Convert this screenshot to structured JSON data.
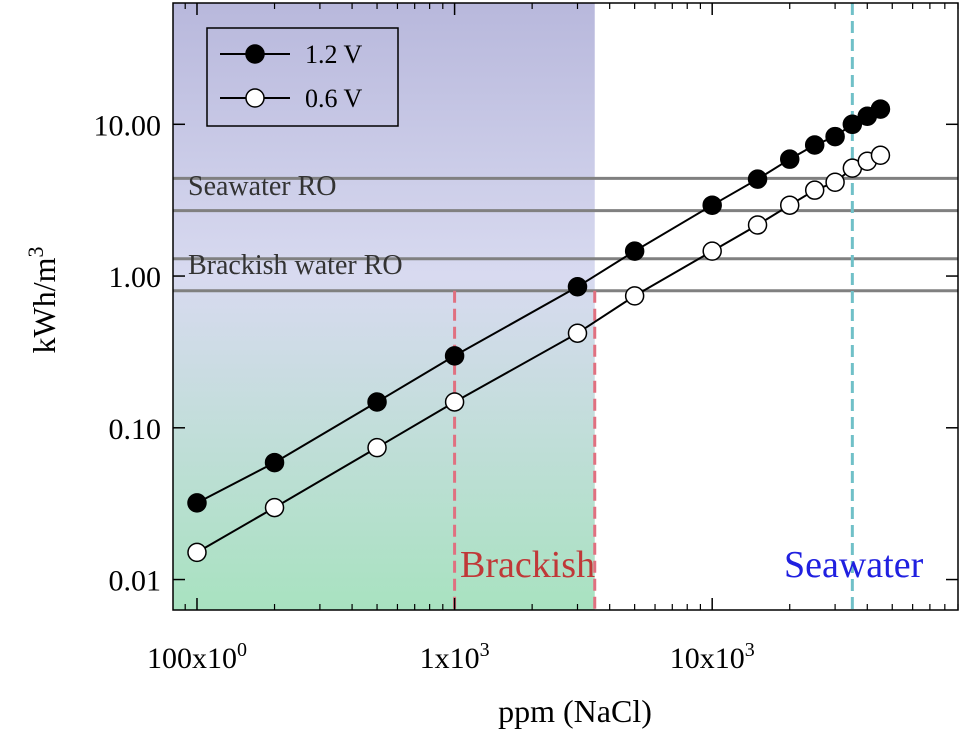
{
  "chart_data": {
    "type": "scatter",
    "x_label": "ppm (NaCl)",
    "y_label": {
      "text": "kWh/m",
      "sup": "3"
    },
    "log_x": true,
    "log_y": true,
    "xlim": [
      80.7,
      90000
    ],
    "ylim": [
      0.0063,
      63
    ],
    "xticks": [
      {
        "value": 100,
        "label": "100x10",
        "exp": "0"
      },
      {
        "value": 1000,
        "label": "1x10",
        "exp": "3"
      },
      {
        "value": 10000,
        "label": "10x10",
        "exp": "3"
      }
    ],
    "xminor_ticks": [
      90,
      200,
      300,
      400,
      500,
      600,
      700,
      800,
      900,
      2000,
      3000,
      4000,
      5000,
      6000,
      7000,
      8000,
      9000,
      20000,
      30000,
      40000,
      50000,
      60000,
      70000,
      80000,
      90000
    ],
    "yticks": [
      {
        "value": 0.01,
        "label": "0.01"
      },
      {
        "value": 0.1,
        "label": "0.10"
      },
      {
        "value": 1,
        "label": "1.00"
      },
      {
        "value": 10,
        "label": "10.00"
      }
    ],
    "legend_position": "upper left",
    "series": [
      {
        "name": "1.2 V",
        "color": "#000000",
        "x": [
          100,
          200,
          500,
          1000,
          3000,
          5000,
          10000,
          15000,
          20000,
          25000,
          30000,
          35000,
          40000,
          45000
        ],
        "values": [
          0.032,
          0.059,
          0.148,
          0.298,
          0.85,
          1.46,
          2.93,
          4.35,
          5.89,
          7.3,
          8.3,
          10,
          11.3,
          12.6
        ]
      },
      {
        "name": "0.6 V",
        "color": "#ffffff",
        "x": [
          100,
          200,
          500,
          1000,
          3000,
          5000,
          10000,
          15000,
          20000,
          25000,
          30000,
          35000,
          40000,
          45000
        ],
        "values": [
          0.0151,
          0.0298,
          0.074,
          0.148,
          0.42,
          0.74,
          1.46,
          2.17,
          2.93,
          3.68,
          4.15,
          5.14,
          5.71,
          6.25
        ]
      }
    ],
    "shade_to": 3500,
    "hlines": [
      4.4,
      2.7,
      1.3,
      0.8
    ],
    "vlines": [
      {
        "value": 1000,
        "color": "#e07080"
      },
      {
        "value": 3500,
        "color": "#e07080"
      },
      {
        "value": 35000,
        "color": "#70c0c8"
      }
    ],
    "annotations": [
      {
        "text": "Seawater RO",
        "color": "#333333"
      },
      {
        "text": "Brackish water RO",
        "color": "#333333"
      },
      {
        "text": "Brackish",
        "color": "#c03838"
      },
      {
        "text": "Seawater",
        "color": "#2020e0"
      }
    ]
  }
}
